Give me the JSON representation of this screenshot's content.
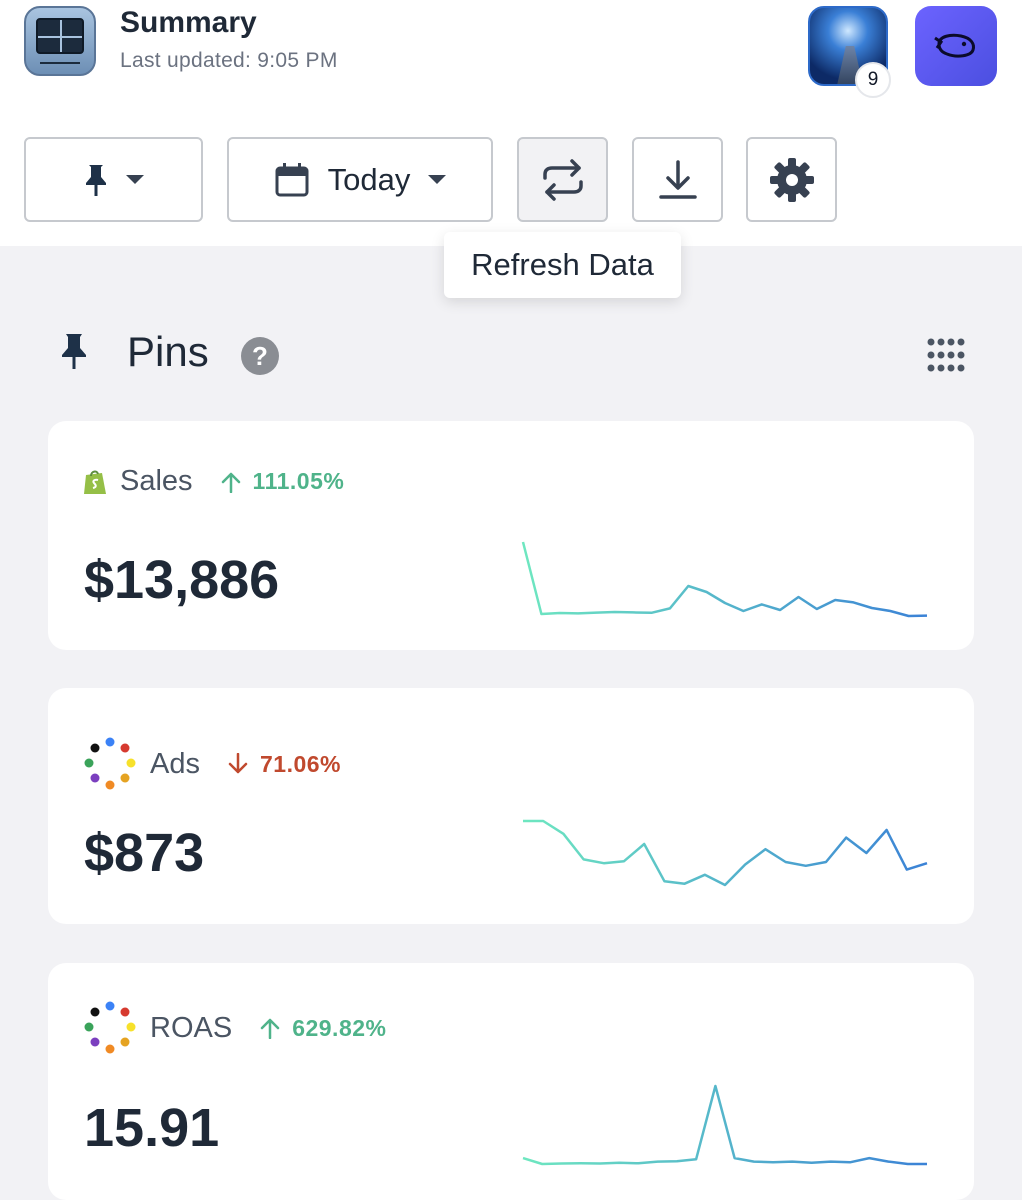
{
  "header": {
    "title": "Summary",
    "subtitle": "Last updated: 9:05 PM",
    "notification_count": "9"
  },
  "toolbar": {
    "date_label": "Today",
    "tooltip": "Refresh Data"
  },
  "section": {
    "title": "Pins",
    "help": "?"
  },
  "cards": [
    {
      "label": "Sales",
      "delta": "111.05%",
      "direction": "up",
      "value": "$13,886",
      "spark": [
        38,
        2,
        2.5,
        2.3,
        2.7,
        3.0,
        2.8,
        2.6,
        4.8,
        16.0,
        13.0,
        7.5,
        3.5,
        6.8,
        4.0,
        10.5,
        4.5,
        9.0,
        7.8,
        5.0,
        3.5,
        1.0,
        1.2
      ]
    },
    {
      "label": "Ads",
      "delta": "71.06%",
      "direction": "down",
      "value": "$873",
      "spark": [
        28.5,
        28.5,
        23.5,
        13.5,
        12.0,
        12.8,
        19.5,
        5.0,
        4.0,
        7.5,
        3.5,
        11.5,
        17.5,
        12.5,
        11.0,
        12.5,
        22.0,
        16.0,
        25.0,
        9.5,
        12.0
      ]
    },
    {
      "label": "ROAS",
      "delta": "629.82%",
      "direction": "up",
      "value": "15.91",
      "spark": [
        4.5,
        2.0,
        2.2,
        2.3,
        2.2,
        2.5,
        2.3,
        3.0,
        3.2,
        4.0,
        35.0,
        4.5,
        3.0,
        2.7,
        3.0,
        2.5,
        3.0,
        2.7,
        4.5,
        3.0,
        2.0,
        2.0
      ]
    }
  ],
  "colors": {
    "spark_start": "#6ee7c0",
    "spark_end": "#3b82d6",
    "up": "#4fb38a",
    "down": "#c0492e"
  }
}
